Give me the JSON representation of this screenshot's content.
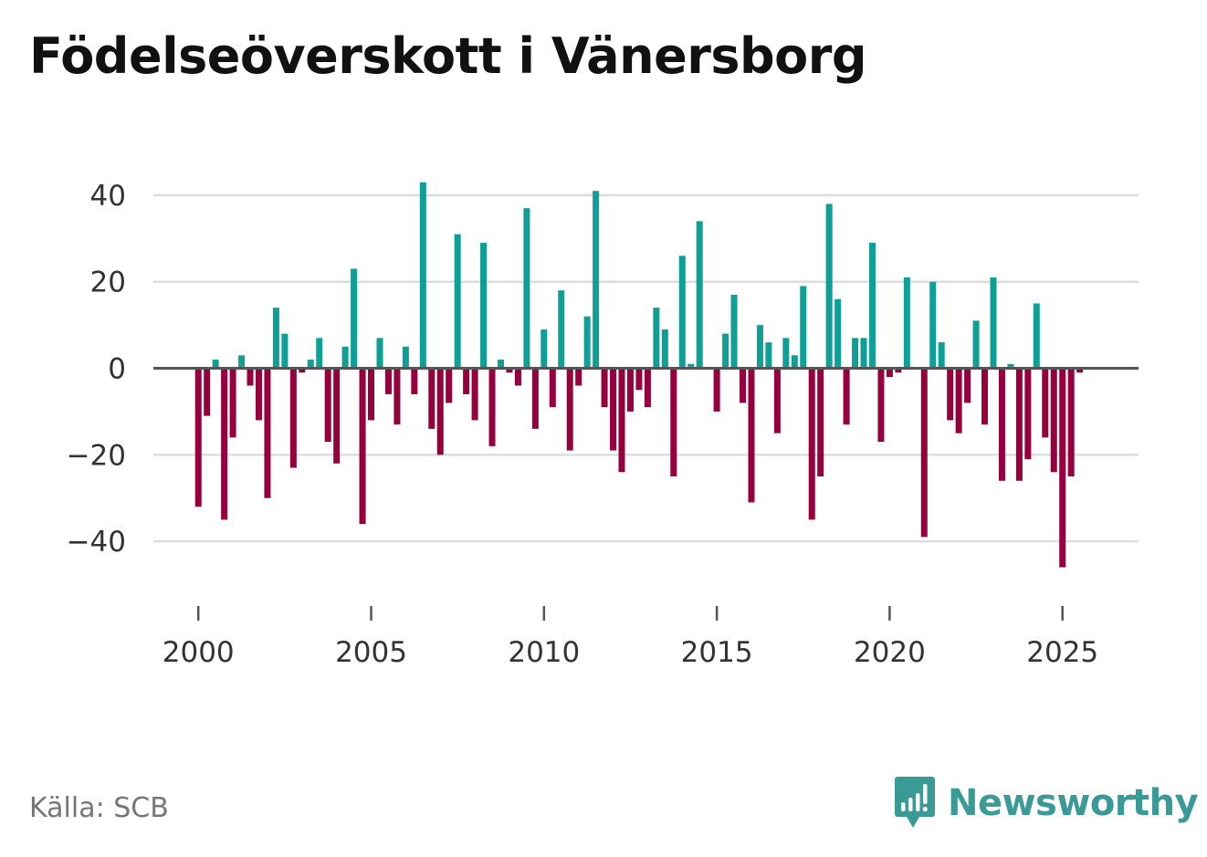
{
  "header": {
    "title": "Födelseöverskott i Vänersborg"
  },
  "footer": {
    "source": "Källa: SCB",
    "brand": "Newsworthy"
  },
  "colors": {
    "positive": "#0e9f97",
    "negative": "#96003c",
    "grid": "#dddddd",
    "zero": "#555555",
    "text": "#333333"
  },
  "chart_data": {
    "type": "bar",
    "title": "Födelseöverskott i Vänersborg",
    "xlabel": "",
    "ylabel": "",
    "x_start": 2000,
    "x_step": 0.25,
    "xlim": [
      1998.7,
      2027.2
    ],
    "ylim": [
      -52,
      48
    ],
    "y_ticks": [
      40,
      20,
      0,
      -20,
      -40
    ],
    "y_tick_labels": [
      "40",
      "20",
      "0",
      "−20",
      "−40"
    ],
    "x_ticks": [
      2000,
      2005,
      2010,
      2015,
      2020,
      2025
    ],
    "x_tick_labels": [
      "2000",
      "2005",
      "2010",
      "2015",
      "2020",
      "2025"
    ],
    "values": [
      -32,
      -11,
      2,
      -35,
      -16,
      3,
      -4,
      -12,
      -30,
      14,
      8,
      -23,
      -1,
      2,
      7,
      -17,
      -22,
      5,
      23,
      -36,
      -12,
      7,
      -6,
      -13,
      5,
      -6,
      43,
      -14,
      -20,
      -8,
      31,
      -6,
      -12,
      29,
      -18,
      2,
      -1,
      -4,
      37,
      -14,
      9,
      -9,
      18,
      -19,
      -4,
      12,
      41,
      -9,
      -19,
      -24,
      -10,
      -5,
      -9,
      14,
      9,
      -25,
      26,
      1,
      34,
      0,
      -10,
      8,
      17,
      -8,
      -31,
      10,
      6,
      -15,
      7,
      3,
      19,
      -35,
      -25,
      38,
      16,
      -13,
      7,
      7,
      29,
      -17,
      -2,
      -1,
      21,
      0,
      -39,
      20,
      6,
      -12,
      -15,
      -8,
      11,
      -13,
      21,
      -26,
      1,
      -26,
      -21,
      15,
      -16,
      -24,
      -46,
      -25,
      -1
    ]
  }
}
